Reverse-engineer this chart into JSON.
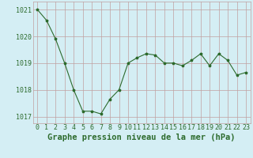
{
  "x": [
    0,
    1,
    2,
    3,
    4,
    5,
    6,
    7,
    8,
    9,
    10,
    11,
    12,
    13,
    14,
    15,
    16,
    17,
    18,
    19,
    20,
    21,
    22,
    23
  ],
  "y": [
    1021.0,
    1020.6,
    1019.9,
    1019.0,
    1018.0,
    1017.2,
    1017.2,
    1017.1,
    1017.65,
    1018.0,
    1019.0,
    1019.2,
    1019.35,
    1019.3,
    1019.0,
    1019.0,
    1018.9,
    1019.1,
    1019.35,
    1018.9,
    1019.35,
    1019.1,
    1018.55,
    1018.65
  ],
  "line_color": "#2d6b2d",
  "marker": "*",
  "bg_color": "#d4eef4",
  "grid_color": "#c0a0a0",
  "xlabel": "Graphe pression niveau de la mer (hPa)",
  "xlabel_fontsize": 7.5,
  "xlabel_color": "#2d6b2d",
  "tick_label_color": "#2d6b2d",
  "tick_fontsize": 6.0,
  "ylim": [
    1016.75,
    1021.3
  ],
  "yticks": [
    1017,
    1018,
    1019,
    1020,
    1021
  ],
  "xticks": [
    0,
    1,
    2,
    3,
    4,
    5,
    6,
    7,
    8,
    9,
    10,
    11,
    12,
    13,
    14,
    15,
    16,
    17,
    18,
    19,
    20,
    21,
    22,
    23
  ]
}
